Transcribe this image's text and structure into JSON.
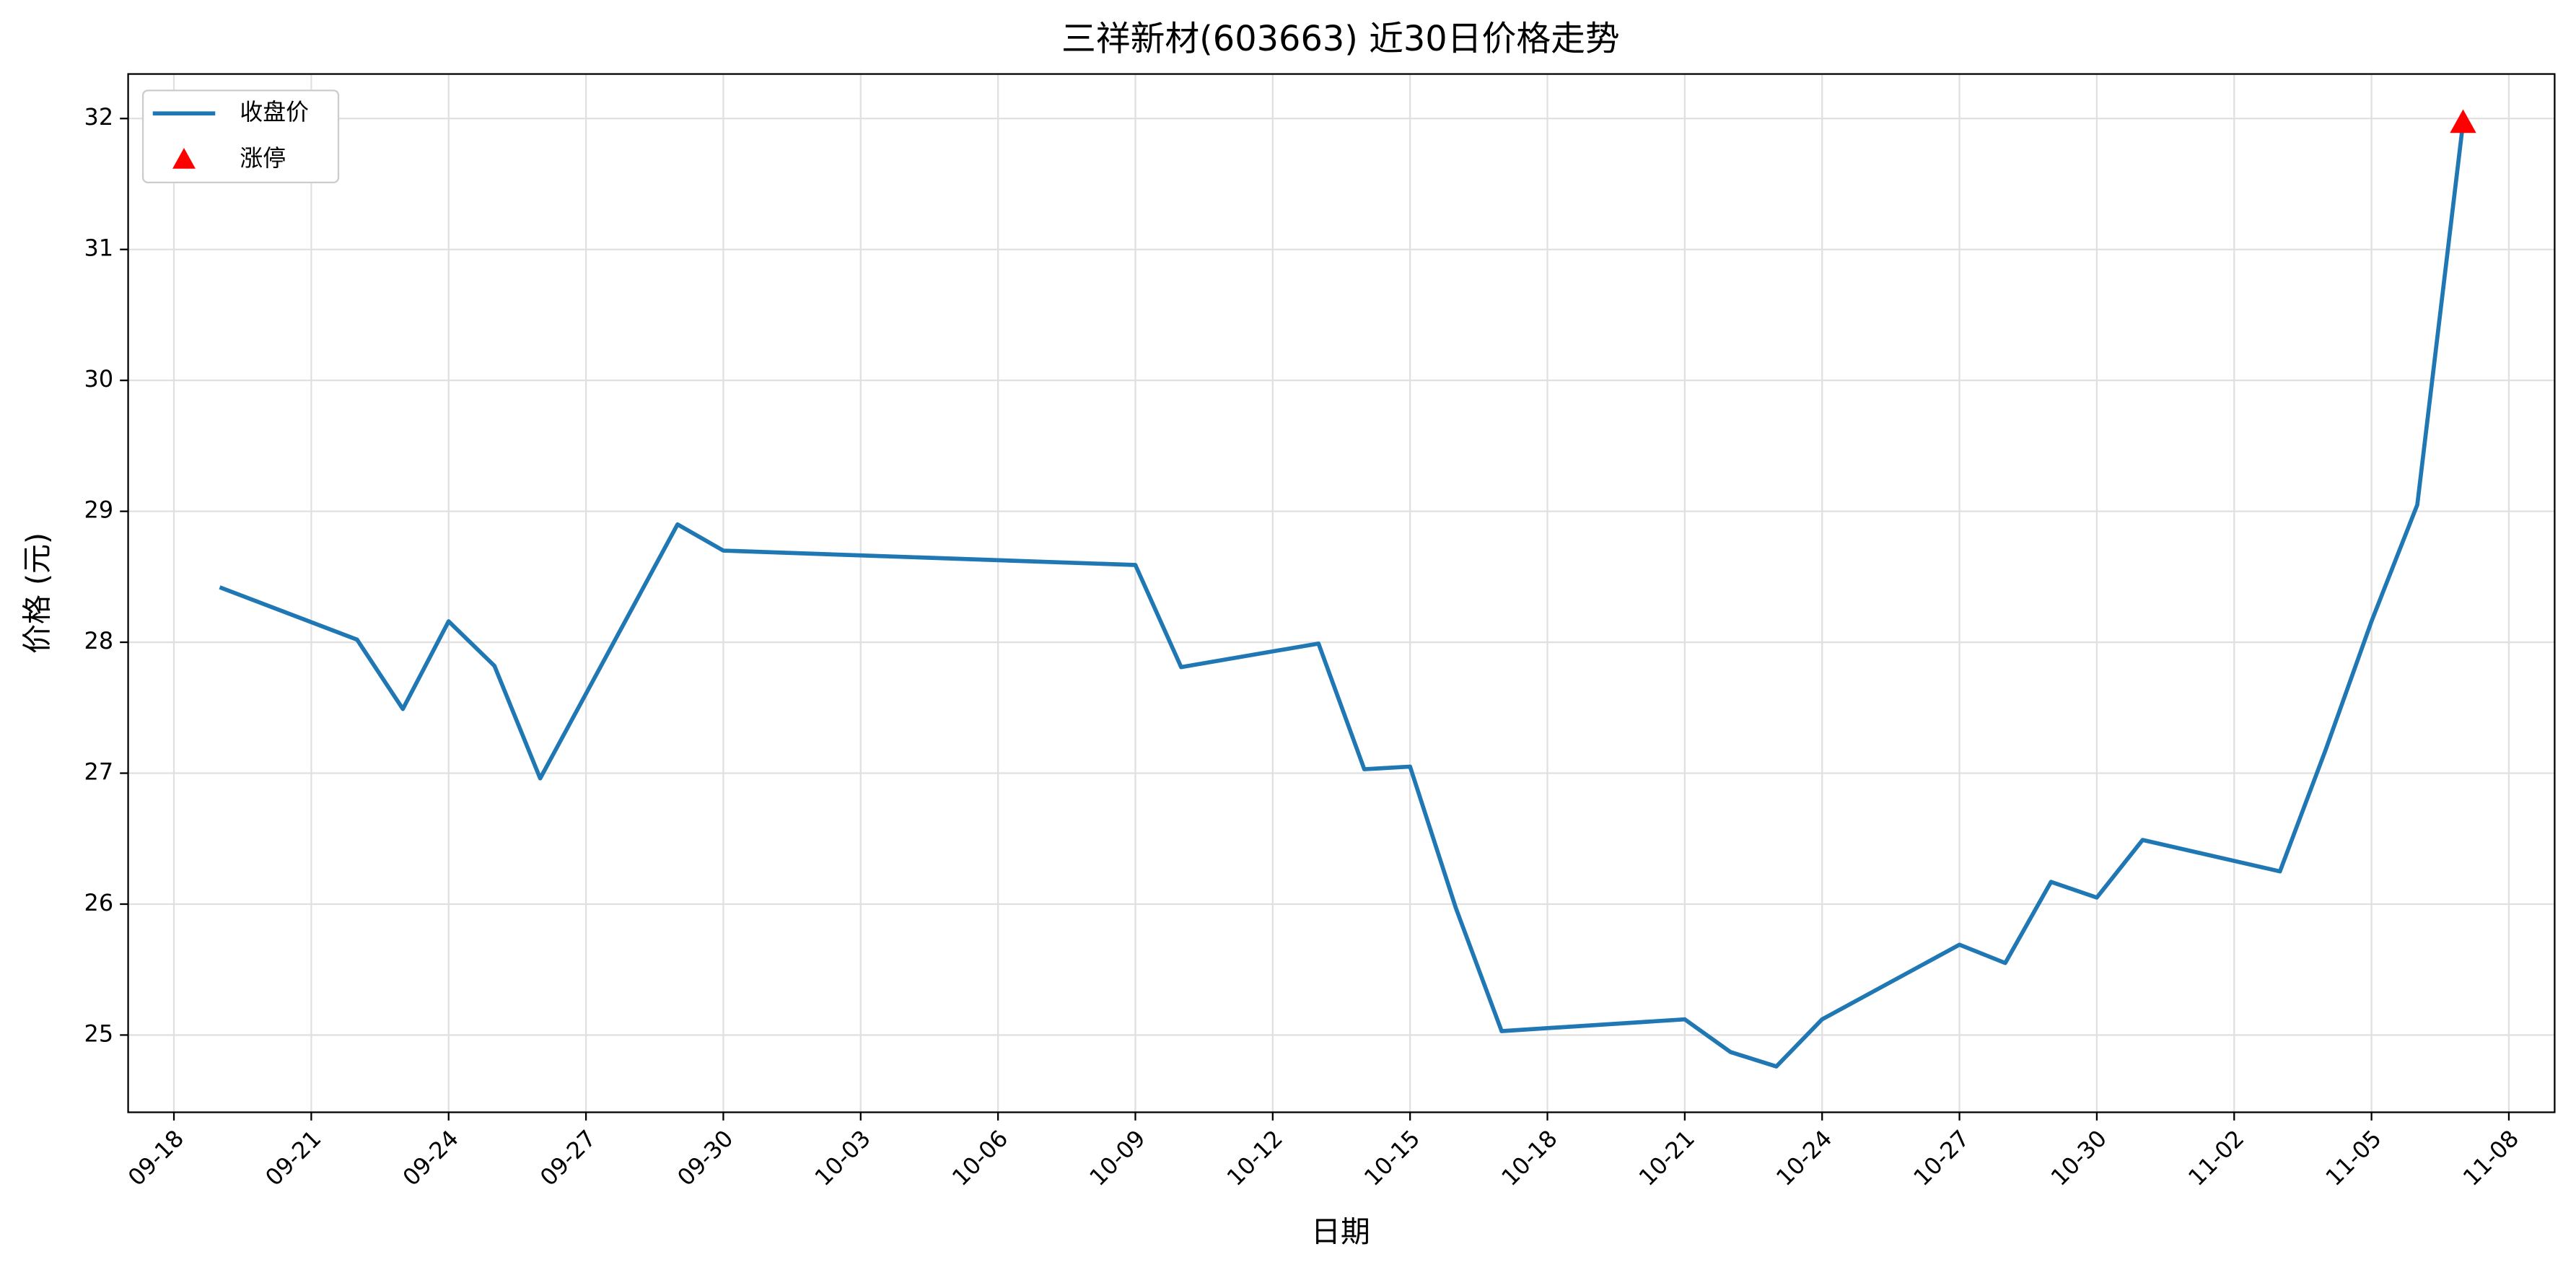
{
  "chart_data": {
    "type": "line",
    "title": "三祥新材(603663) 近30日价格走势",
    "xlabel": "日期",
    "ylabel": "价格 (元)",
    "x": [
      "09-19",
      "09-22",
      "09-23",
      "09-24",
      "09-25",
      "09-26",
      "09-29",
      "09-30",
      "10-09",
      "10-10",
      "10-13",
      "10-14",
      "10-15",
      "10-16",
      "10-17",
      "10-21",
      "10-22",
      "10-23",
      "10-24",
      "10-27",
      "10-28",
      "10-29",
      "10-30",
      "10-31",
      "11-03",
      "11-04",
      "11-05",
      "11-06",
      "11-07"
    ],
    "series": [
      {
        "name": "收盘价",
        "color": "#1f77b4",
        "values": [
          28.42,
          28.02,
          27.49,
          28.16,
          27.82,
          26.96,
          28.9,
          28.7,
          28.59,
          27.81,
          27.99,
          27.03,
          27.05,
          25.97,
          25.03,
          25.12,
          24.87,
          24.76,
          25.12,
          25.69,
          25.55,
          26.17,
          26.05,
          26.49,
          26.25,
          27.18,
          28.16,
          29.05,
          31.97
        ]
      }
    ],
    "limit_up": {
      "type": "scatter",
      "name": "涨停",
      "color": "#ff0000",
      "marker": "triangle",
      "x": [
        "11-07"
      ],
      "values": [
        31.97
      ]
    },
    "xlim": [
      "09-17",
      "11-09"
    ],
    "xticks": [
      "09-18",
      "09-21",
      "09-24",
      "09-27",
      "09-30",
      "10-03",
      "10-06",
      "10-09",
      "10-12",
      "10-15",
      "10-18",
      "10-21",
      "10-24",
      "10-27",
      "10-30",
      "11-02",
      "11-05",
      "11-08"
    ],
    "ylim": [
      24.41,
      32.34
    ],
    "yticks": [
      25,
      26,
      27,
      28,
      29,
      30,
      31,
      32
    ],
    "grid": true,
    "legend": "upper left"
  }
}
